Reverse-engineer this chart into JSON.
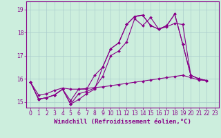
{
  "title": "",
  "xlabel": "Windchill (Refroidissement éolien,°C)",
  "ylabel": "",
  "background_color": "#cceedd",
  "grid_color": "#aacccc",
  "line_color": "#880088",
  "marker": "D",
  "markersize": 2.0,
  "linewidth": 0.8,
  "xlabel_fontsize": 6.5,
  "tick_fontsize": 5.5,
  "ylim": [
    14.75,
    19.35
  ],
  "xlim": [
    -0.5,
    23.5
  ],
  "yticks": [
    15,
    16,
    17,
    18,
    19
  ],
  "xticks": [
    0,
    1,
    2,
    3,
    4,
    5,
    6,
    7,
    8,
    9,
    10,
    11,
    12,
    13,
    14,
    15,
    16,
    17,
    18,
    19,
    20,
    21,
    22,
    23
  ],
  "series": [
    [
      15.85,
      15.12,
      15.18,
      15.3,
      15.55,
      14.9,
      15.35,
      15.45,
      15.6,
      16.1,
      17.0,
      17.2,
      17.6,
      18.6,
      18.3,
      18.65,
      18.15,
      18.25,
      18.4,
      18.35,
      16.15,
      16.0,
      15.92
    ],
    [
      15.85,
      15.12,
      15.18,
      15.3,
      15.55,
      14.9,
      15.1,
      15.35,
      15.55,
      16.5,
      17.3,
      17.55,
      18.35,
      18.7,
      18.75,
      18.3,
      18.15,
      18.3,
      18.8,
      17.5,
      16.15,
      16.0,
      15.92
    ],
    [
      15.85,
      15.12,
      15.18,
      15.3,
      15.55,
      15.05,
      15.55,
      15.55,
      16.15,
      16.5,
      17.3,
      17.55,
      18.35,
      18.7,
      18.75,
      18.3,
      18.15,
      18.3,
      18.8,
      17.5,
      16.15,
      16.0,
      15.92
    ],
    [
      15.85,
      15.3,
      15.35,
      15.5,
      15.6,
      15.55,
      15.55,
      15.58,
      15.62,
      15.65,
      15.7,
      15.75,
      15.8,
      15.85,
      15.9,
      15.95,
      16.0,
      16.05,
      16.1,
      16.15,
      16.05,
      15.95,
      15.92
    ]
  ]
}
